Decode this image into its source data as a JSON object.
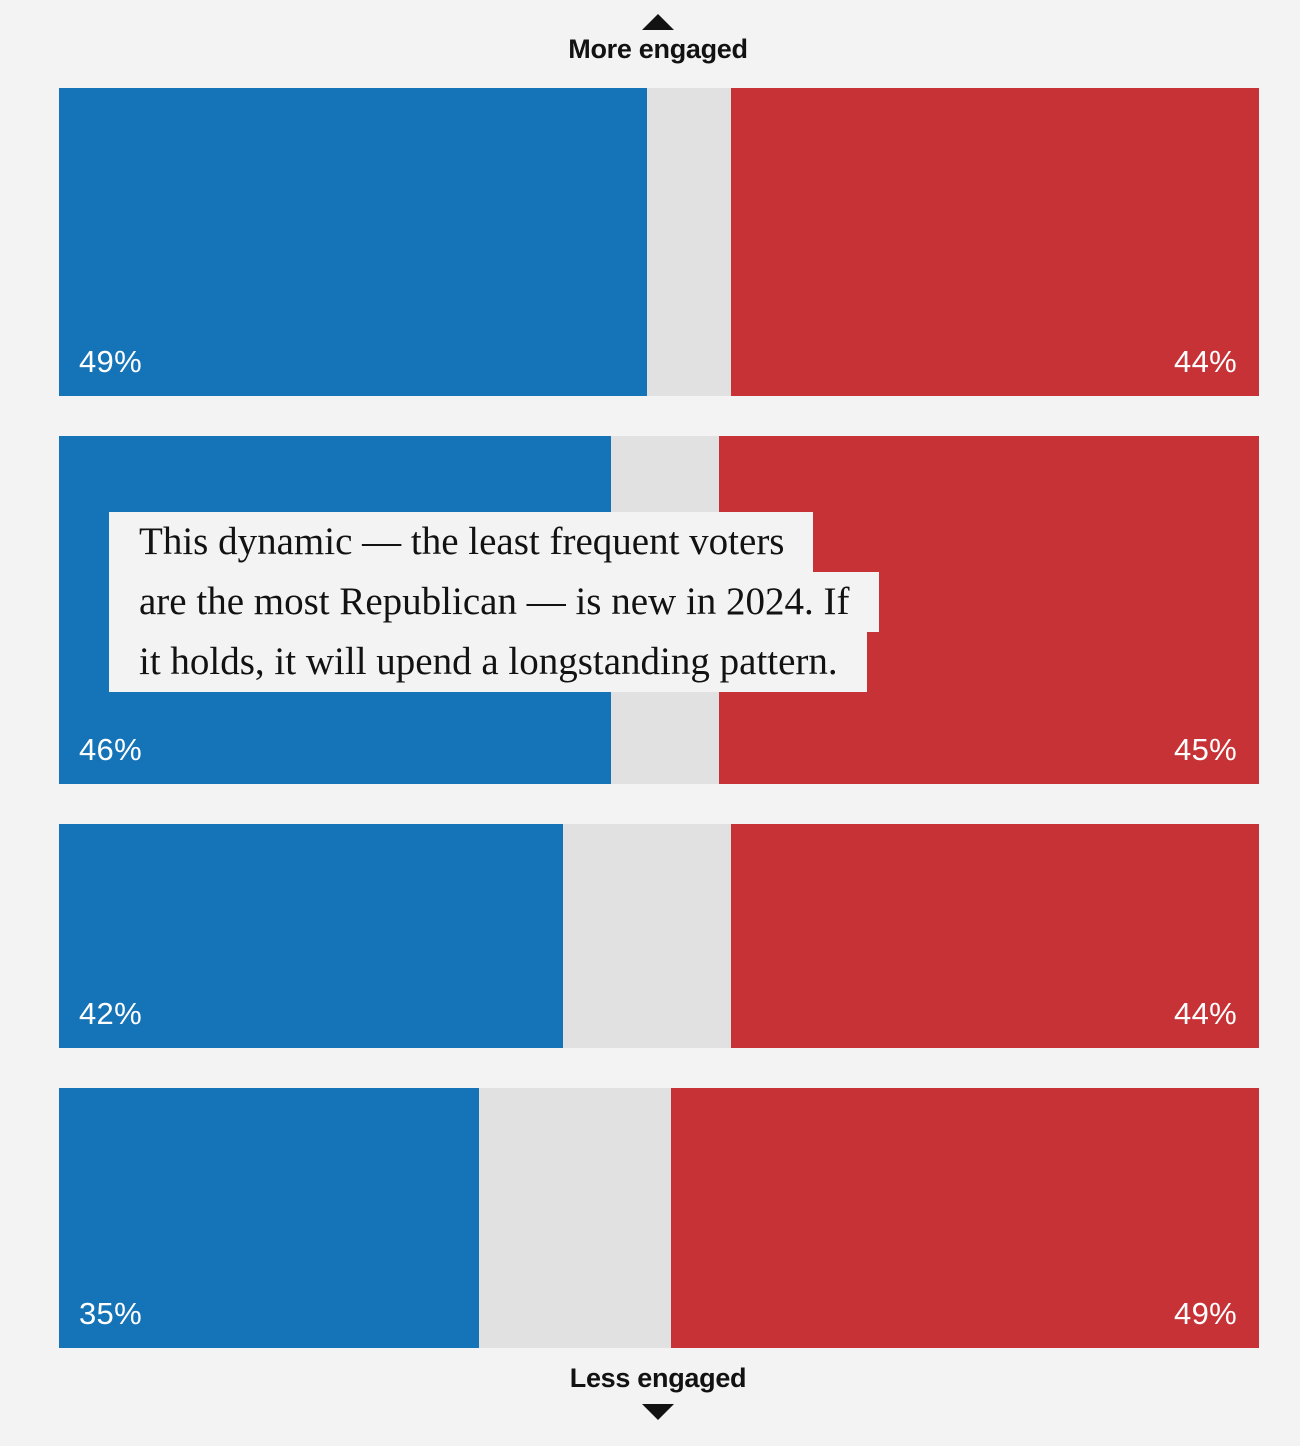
{
  "chart_data": {
    "type": "bar",
    "orientation": "horizontal-stacked",
    "top_label": "More engaged",
    "bottom_label": "Less engaged",
    "colors": {
      "democrat": "#1574b7",
      "republican": "#c73236",
      "other": "#e1e1e1"
    },
    "rows": [
      {
        "dem": 49,
        "rep": 44,
        "dem_label": "49%",
        "rep_label": "44%"
      },
      {
        "dem": 46,
        "rep": 45,
        "dem_label": "46%",
        "rep_label": "45%"
      },
      {
        "dem": 42,
        "rep": 44,
        "dem_label": "42%",
        "rep_label": "44%"
      },
      {
        "dem": 35,
        "rep": 49,
        "dem_label": "35%",
        "rep_label": "49%"
      }
    ],
    "annotation": {
      "lines": [
        "This dynamic — the least frequent voters",
        "are the most Republican — is new in 2024. If",
        "it holds, it will upend a longstanding pattern."
      ]
    }
  }
}
